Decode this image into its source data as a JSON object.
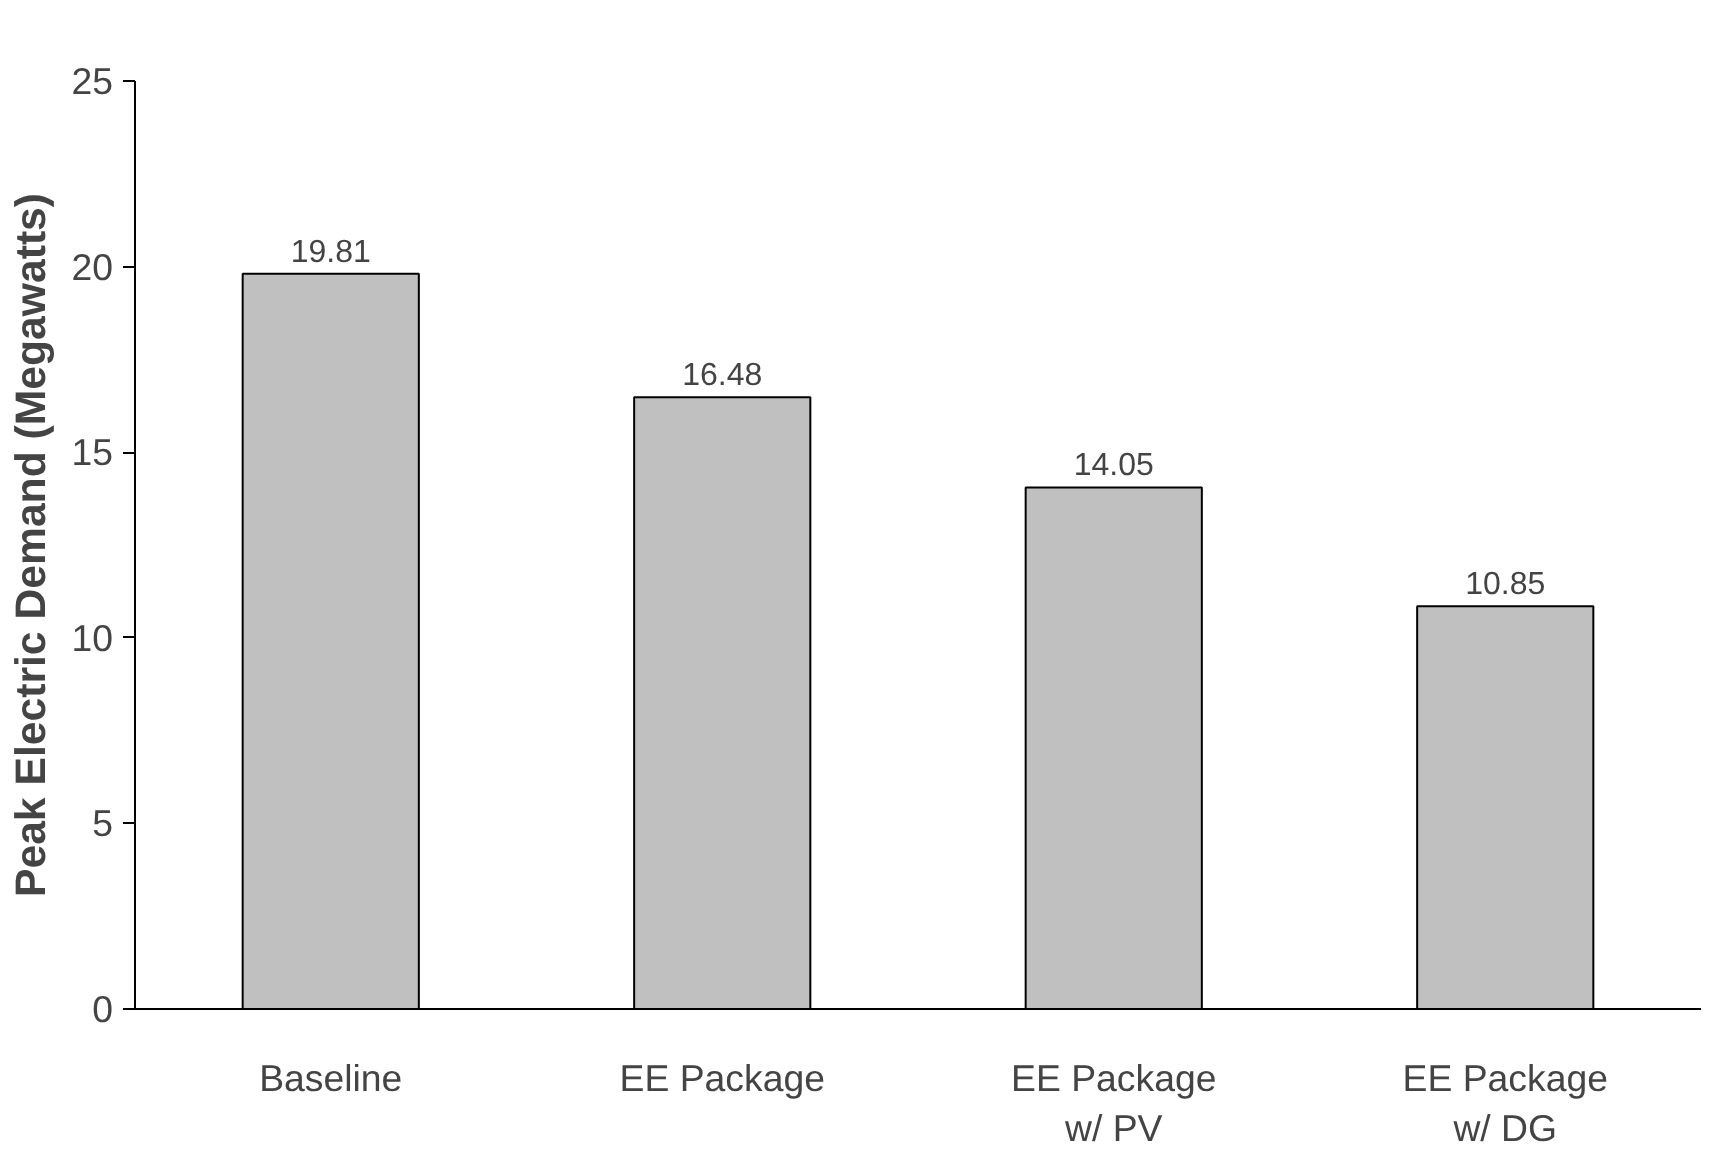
{
  "chart_data": {
    "type": "bar",
    "ylabel": "Peak Electric Demand (Megawatts)",
    "categories": [
      "Baseline",
      "EE Package",
      "EE Package\nw/ PV",
      "EE Package\nw/ DG"
    ],
    "values": [
      19.81,
      16.48,
      14.05,
      10.85
    ],
    "color": "#c0c0c0",
    "ylim": [
      0,
      25
    ],
    "yticks": [
      0,
      5,
      10,
      15,
      20,
      25
    ],
    "data_labels": true,
    "grid": false
  }
}
